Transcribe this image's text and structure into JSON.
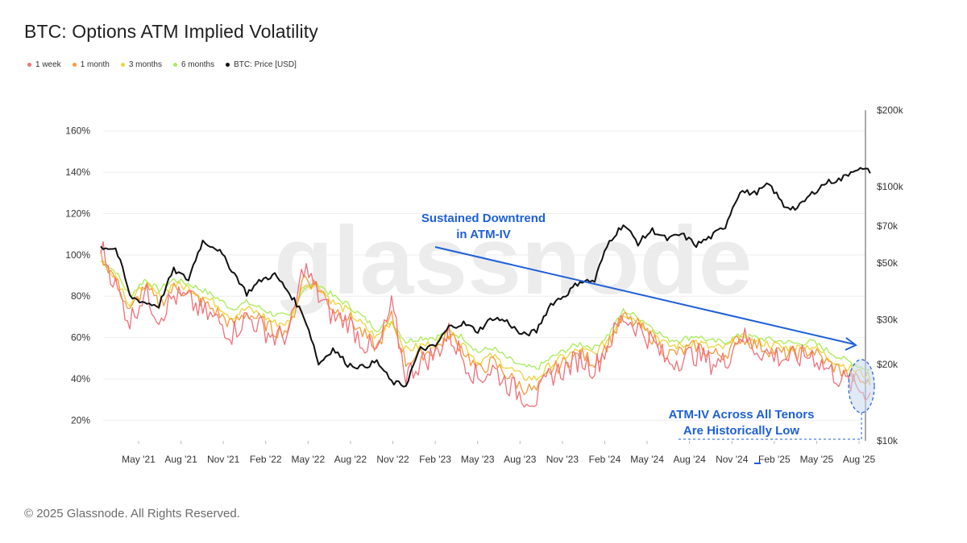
{
  "title": "BTC: Options ATM Implied Volatility",
  "footer": "© 2025 Glassnode. All Rights Reserved.",
  "watermark": "glassnode",
  "legend": [
    {
      "label": "1 week",
      "color": "#f0707a"
    },
    {
      "label": "1 month",
      "color": "#f59a3c"
    },
    {
      "label": "3 months",
      "color": "#ecd43a"
    },
    {
      "label": "6 months",
      "color": "#a9ec58"
    },
    {
      "label": "BTC: Price [USD]",
      "color": "#111111"
    }
  ],
  "annotations": {
    "downtrend_line1": "Sustained Downtrend",
    "downtrend_line2": "in ATM-IV",
    "low_line1": "ATM-IV Across All Tenors",
    "low_line2": "Are Historically Low"
  },
  "chart_data": {
    "type": "line",
    "x_ticks": [
      "May '21",
      "Aug '21",
      "Nov '21",
      "Feb '22",
      "May '22",
      "Aug '22",
      "Nov '22",
      "Feb '23",
      "May '23",
      "Aug '23",
      "Nov '23",
      "Feb '24",
      "May '24",
      "Aug '24",
      "Nov '24",
      "Feb '25",
      "May '25",
      "Aug '25"
    ],
    "y_left_ticks": [
      "20%",
      "40%",
      "60%",
      "80%",
      "100%",
      "120%",
      "140%",
      "160%"
    ],
    "y_left_tick_values": [
      20,
      40,
      60,
      80,
      100,
      120,
      140,
      160
    ],
    "y_left_range": [
      10,
      170
    ],
    "y_right_ticks": [
      "$10k",
      "$20k",
      "$30k",
      "$50k",
      "$70k",
      "$100k",
      "$200k"
    ],
    "y_right_tick_values": [
      10000,
      20000,
      30000,
      50000,
      70000,
      100000,
      200000
    ],
    "y_right_range": [
      10000,
      200000
    ],
    "y_right_scale": "log",
    "x_range": [
      "2021-03-20",
      "2025-08-05"
    ],
    "dates": [
      "2021-03",
      "2021-04",
      "2021-05",
      "2021-06",
      "2021-07",
      "2021-08",
      "2021-09",
      "2021-10",
      "2021-11",
      "2021-12",
      "2022-01",
      "2022-02",
      "2022-03",
      "2022-04",
      "2022-05",
      "2022-06",
      "2022-07",
      "2022-08",
      "2022-09",
      "2022-10",
      "2022-11",
      "2022-12",
      "2023-01",
      "2023-02",
      "2023-03",
      "2023-04",
      "2023-05",
      "2023-06",
      "2023-07",
      "2023-08",
      "2023-09",
      "2023-10",
      "2023-11",
      "2023-12",
      "2024-01",
      "2024-02",
      "2024-03",
      "2024-04",
      "2024-05",
      "2024-06",
      "2024-07",
      "2024-08",
      "2024-09",
      "2024-10",
      "2024-11",
      "2024-12",
      "2025-01",
      "2025-02",
      "2025-03",
      "2025-04",
      "2025-05",
      "2025-06",
      "2025-07",
      "2025-08"
    ],
    "series": [
      {
        "name": "1 week",
        "color": "#f0707a",
        "values": [
          105,
          85,
          68,
          82,
          70,
          80,
          78,
          72,
          68,
          62,
          70,
          65,
          60,
          62,
          95,
          80,
          70,
          68,
          58,
          52,
          75,
          42,
          48,
          52,
          62,
          50,
          40,
          45,
          38,
          32,
          30,
          42,
          45,
          50,
          45,
          58,
          70,
          65,
          58,
          48,
          50,
          52,
          48,
          48,
          62,
          55,
          52,
          50,
          50,
          52,
          45,
          40,
          36,
          33
        ]
      },
      {
        "name": "1 month",
        "color": "#f59a3c",
        "values": [
          100,
          88,
          72,
          85,
          76,
          84,
          82,
          77,
          72,
          66,
          72,
          68,
          63,
          64,
          90,
          84,
          74,
          70,
          62,
          55,
          70,
          48,
          52,
          54,
          62,
          54,
          44,
          48,
          42,
          36,
          34,
          44,
          48,
          52,
          48,
          58,
          70,
          66,
          60,
          52,
          53,
          56,
          52,
          52,
          60,
          57,
          54,
          52,
          52,
          54,
          48,
          44,
          40,
          37
        ]
      },
      {
        "name": "3 months",
        "color": "#ecd43a",
        "values": [
          98,
          90,
          76,
          86,
          80,
          86,
          84,
          80,
          76,
          70,
          74,
          71,
          67,
          67,
          86,
          85,
          77,
          73,
          66,
          60,
          68,
          54,
          56,
          57,
          62,
          57,
          48,
          51,
          46,
          41,
          40,
          47,
          51,
          54,
          52,
          60,
          72,
          68,
          63,
          56,
          56,
          58,
          55,
          55,
          60,
          58,
          57,
          55,
          55,
          56,
          51,
          47,
          44,
          41
        ]
      },
      {
        "name": "6 months",
        "color": "#a9ec58",
        "values": [
          97,
          92,
          80,
          88,
          83,
          88,
          86,
          83,
          79,
          74,
          77,
          74,
          71,
          70,
          84,
          86,
          80,
          76,
          70,
          64,
          68,
          58,
          60,
          60,
          63,
          60,
          53,
          55,
          50,
          46,
          45,
          50,
          54,
          57,
          55,
          62,
          73,
          70,
          65,
          59,
          59,
          61,
          58,
          58,
          61,
          60,
          59,
          58,
          57,
          58,
          54,
          50,
          47,
          44
        ]
      },
      {
        "name": "BTC: Price [USD]",
        "color": "#111111",
        "axis": "right",
        "values": [
          58000,
          57000,
          37000,
          35000,
          34000,
          47000,
          43000,
          61000,
          57000,
          47000,
          38000,
          43000,
          45000,
          38000,
          31000,
          20000,
          23000,
          20000,
          19500,
          20500,
          17000,
          16500,
          23000,
          23500,
          28000,
          29000,
          27000,
          30500,
          29500,
          26000,
          27000,
          34500,
          37500,
          42500,
          42500,
          61000,
          71000,
          60000,
          67500,
          62000,
          65000,
          59000,
          63500,
          70000,
          96000,
          94000,
          102000,
          84000,
          82000,
          94000,
          104000,
          107000,
          118000,
          115000
        ]
      }
    ]
  }
}
